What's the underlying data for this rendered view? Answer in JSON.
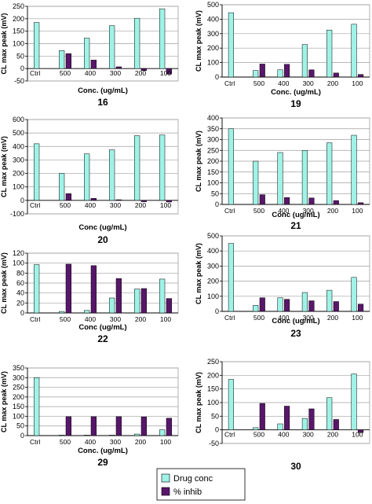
{
  "chart_data": [
    {
      "type": "bar",
      "number": "16",
      "ylabel": "CL max peak (mV)",
      "xlabel": "Conc. (ug/mL)",
      "categories": [
        "Ctrl",
        "500",
        "400",
        "300",
        "200",
        "100"
      ],
      "ylim": [
        -50,
        250
      ],
      "yticks": [
        -50,
        0,
        50,
        100,
        150,
        200,
        250
      ],
      "series": [
        {
          "name": "Drug conc",
          "values": [
            185,
            72,
            122,
            172,
            202,
            240
          ]
        },
        {
          "name": "% inhib",
          "values": [
            null,
            60,
            34,
            7,
            -8,
            -22
          ]
        }
      ]
    },
    {
      "type": "bar",
      "number": "19",
      "ylabel": "CL max peak (mV)",
      "xlabel": "Conc. (ug/mL)",
      "categories": [
        "Ctrl",
        "500",
        "400",
        "300",
        "200",
        "100"
      ],
      "ylim": [
        0,
        500
      ],
      "yticks": [
        0,
        100,
        200,
        300,
        400,
        500
      ],
      "series": [
        {
          "name": "Drug conc",
          "values": [
            445,
            45,
            50,
            225,
            325,
            365
          ]
        },
        {
          "name": "% inhib",
          "values": [
            null,
            90,
            88,
            50,
            28,
            18
          ]
        }
      ]
    },
    {
      "type": "bar",
      "number": "20",
      "ylabel": "CL max peak (mV)",
      "xlabel": "Conc (ug/mL)",
      "categories": [
        "Ctrl",
        "500",
        "400",
        "300",
        "200",
        "100"
      ],
      "ylim": [
        -100,
        600
      ],
      "yticks": [
        -100,
        0,
        100,
        200,
        300,
        400,
        500,
        600
      ],
      "series": [
        {
          "name": "Drug conc",
          "values": [
            420,
            200,
            345,
            375,
            480,
            485
          ]
        },
        {
          "name": "% inhib",
          "values": [
            null,
            50,
            15,
            5,
            -10,
            -12
          ]
        }
      ]
    },
    {
      "type": "bar",
      "number": "21",
      "ylabel": "CL max peak (mV)",
      "xlabel": "Conc (ug/mL)",
      "categories": [
        "Ctrl",
        "500",
        "400",
        "300",
        "200",
        "100"
      ],
      "ylim": [
        0,
        400
      ],
      "yticks": [
        0,
        50,
        100,
        150,
        200,
        250,
        300,
        350,
        400
      ],
      "series": [
        {
          "name": "Drug conc",
          "values": [
            350,
            200,
            240,
            250,
            285,
            320
          ]
        },
        {
          "name": "% inhib",
          "values": [
            null,
            45,
            32,
            30,
            18,
            8
          ]
        }
      ]
    },
    {
      "type": "bar",
      "number": "22",
      "ylabel": "CL max peak (mV)",
      "xlabel": "Conc (ug/mL)",
      "categories": [
        "Ctrl",
        "500",
        "400",
        "300",
        "200",
        "100"
      ],
      "ylim": [
        0,
        120
      ],
      "yticks": [
        0,
        20,
        40,
        60,
        80,
        100,
        120
      ],
      "series": [
        {
          "name": "Drug conc",
          "values": [
            97,
            3,
            5,
            30,
            48,
            68
          ]
        },
        {
          "name": "% inhib",
          "values": [
            null,
            98,
            95,
            69,
            49,
            29
          ]
        }
      ]
    },
    {
      "type": "bar",
      "number": "23",
      "ylabel": "CL max peak (mV)",
      "xlabel": "Conc (ug/mL)",
      "categories": [
        "Ctrl",
        "500",
        "400",
        "300",
        "200",
        "100"
      ],
      "ylim": [
        0,
        500
      ],
      "yticks": [
        0,
        100,
        200,
        300,
        400,
        500
      ],
      "series": [
        {
          "name": "Drug conc",
          "values": [
            450,
            40,
            90,
            125,
            140,
            225
          ]
        },
        {
          "name": "% inhib",
          "values": [
            null,
            90,
            80,
            70,
            65,
            48
          ]
        }
      ]
    },
    {
      "type": "bar",
      "number": "29",
      "ylabel": "CL max peak (mV)",
      "xlabel": "Conc. (ug/mL)",
      "categories": [
        "Ctrl",
        "500",
        "400",
        "300",
        "200",
        "100"
      ],
      "ylim": [
        0,
        350
      ],
      "yticks": [
        0,
        50,
        100,
        150,
        200,
        250,
        300,
        350
      ],
      "series": [
        {
          "name": "Drug conc",
          "values": [
            300,
            3,
            3,
            3,
            8,
            30
          ]
        },
        {
          "name": "% inhib",
          "values": [
            null,
            98,
            98,
            98,
            97,
            90
          ]
        }
      ]
    },
    {
      "type": "bar",
      "number": "30",
      "ylabel": "CL max peak (mV)",
      "xlabel": "",
      "categories": [
        "Ctrl",
        "500",
        "400",
        "300",
        "200",
        "100"
      ],
      "ylim": [
        -50,
        250
      ],
      "yticks": [
        -50,
        0,
        50,
        100,
        150,
        200,
        250
      ],
      "series": [
        {
          "name": "Drug conc",
          "values": [
            185,
            8,
            22,
            42,
            118,
            205
          ]
        },
        {
          "name": "% inhib",
          "values": [
            null,
            97,
            87,
            77,
            38,
            -10
          ]
        }
      ]
    }
  ],
  "legend": {
    "drug_label": "Drug conc",
    "inhib_label": "% inhib"
  },
  "colors": {
    "drug": "#9ff3e6",
    "inhib": "#58176a",
    "grid": "#a0a0a0",
    "axis": "#000000"
  }
}
